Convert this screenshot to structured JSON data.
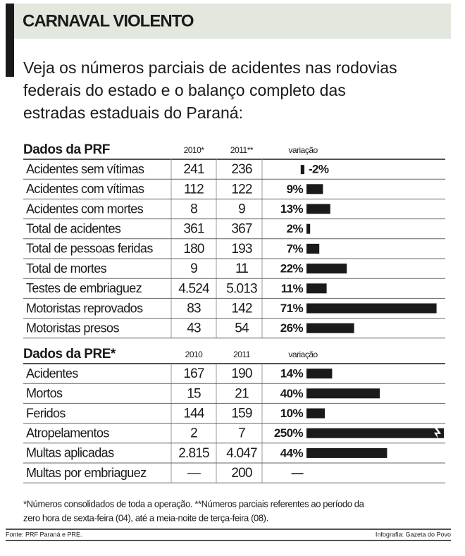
{
  "header": {
    "title": "CARNAVAL VIOLENTO",
    "intro": [
      "Veja os números parciais de acidentes nas rodovias",
      "federais do estado e o balanço completo das",
      "estradas estaduais do Paraná:"
    ]
  },
  "tables": [
    {
      "title": "Dados da PRF",
      "columns": [
        "2010*",
        "2011**",
        "variação"
      ],
      "rows": [
        {
          "label": "Acidentes sem vítimas",
          "cells": [
            "241",
            "236"
          ],
          "variation": {
            "value": -2,
            "label": "-2%"
          }
        },
        {
          "label": "Acidentes com vítimas",
          "cells": [
            "112",
            "122"
          ],
          "variation": {
            "value": 9,
            "label": "9%"
          }
        },
        {
          "label": "Acidentes com mortes",
          "cells": [
            "8",
            "9"
          ],
          "variation": {
            "value": 13,
            "label": "13%"
          }
        },
        {
          "label": "Total de acidentes",
          "cells": [
            "361",
            "367"
          ],
          "variation": {
            "value": 2,
            "label": "2%"
          }
        },
        {
          "label": "Total de pessoas feridas",
          "cells": [
            "180",
            "193"
          ],
          "variation": {
            "value": 7,
            "label": "7%"
          }
        },
        {
          "label": "Total de mortes",
          "cells": [
            "9",
            "11"
          ],
          "variation": {
            "value": 22,
            "label": "22%"
          }
        },
        {
          "label": "Testes de embriaguez",
          "cells": [
            "4.524",
            "5.013"
          ],
          "variation": {
            "value": 11,
            "label": "11%"
          }
        },
        {
          "label": "Motoristas reprovados",
          "cells": [
            "83",
            "142"
          ],
          "variation": {
            "value": 71,
            "label": "71%"
          }
        },
        {
          "label": "Motoristas presos",
          "cells": [
            "43",
            "54"
          ],
          "variation": {
            "value": 26,
            "label": "26%"
          }
        }
      ]
    },
    {
      "title": "Dados da PRE*",
      "columns": [
        "2010",
        "2011",
        "variação"
      ],
      "rows": [
        {
          "label": "Acidentes",
          "cells": [
            "167",
            "190"
          ],
          "variation": {
            "value": 14,
            "label": "14%"
          }
        },
        {
          "label": "Mortos",
          "cells": [
            "15",
            "21"
          ],
          "variation": {
            "value": 40,
            "label": "40%"
          }
        },
        {
          "label": "Feridos",
          "cells": [
            "144",
            "159"
          ],
          "variation": {
            "value": 10,
            "label": "10%"
          }
        },
        {
          "label": "Atropelamentos",
          "cells": [
            "2",
            "7"
          ],
          "variation": {
            "value": 250,
            "label": "250%"
          }
        },
        {
          "label": "Multas aplicadas",
          "cells": [
            "2.815",
            "4.047"
          ],
          "variation": {
            "value": 44,
            "label": "44%"
          }
        },
        {
          "label": "Multas por embriaguez",
          "cells": [
            "—",
            "200"
          ],
          "variation": {
            "value": null,
            "label": "—"
          }
        }
      ]
    }
  ],
  "footnote": [
    "*Números consolidados de toda a operação. **Números parciais referentes ao período da",
    "zero hora de sexta-feira (04), até a meia-noite de terça-feira (08)."
  ],
  "source": "Fonte: PRF Paraná e PRE.",
  "credit": "Infografia: Gazeta do Povo"
}
